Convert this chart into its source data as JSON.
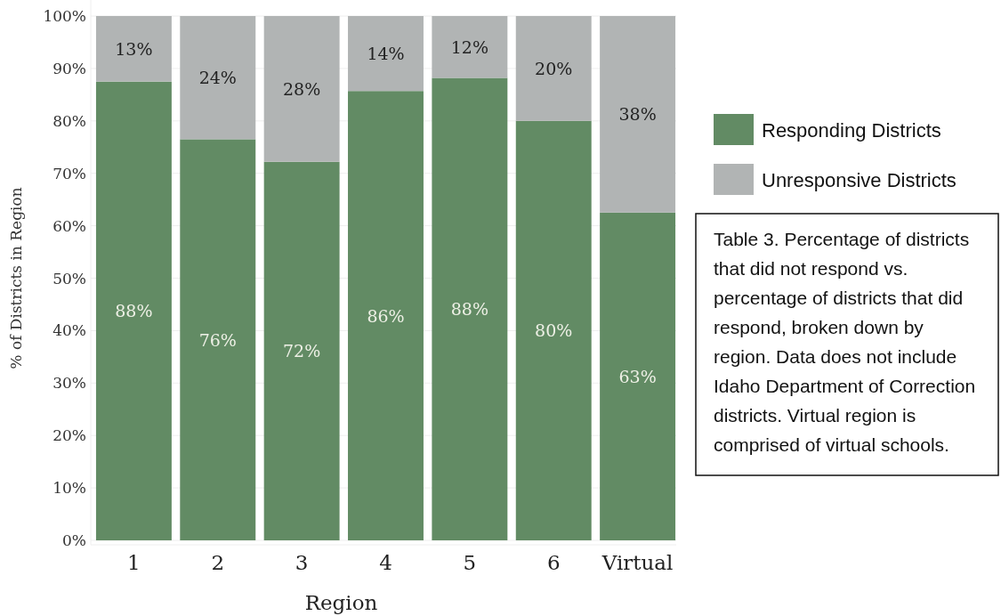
{
  "chart_data": {
    "type": "bar",
    "stacked": true,
    "xlabel": "Region",
    "ylabel": "% of Districts in Region",
    "categories": [
      "1",
      "2",
      "3",
      "4",
      "5",
      "6",
      "Virtual"
    ],
    "series": [
      {
        "name": "Responding Districts",
        "color": "#628b64",
        "values": [
          87.5,
          76.5,
          72.2,
          85.7,
          88.2,
          80,
          62.5
        ],
        "value_labels": [
          "88%",
          "76%",
          "72%",
          "86%",
          "88%",
          "80%",
          "63%"
        ]
      },
      {
        "name": "Unresponsive Districts",
        "color": "#b1b4b4",
        "values": [
          12.5,
          23.5,
          27.8,
          14.3,
          11.8,
          20,
          37.5
        ],
        "value_labels": [
          "13%",
          "24%",
          "28%",
          "14%",
          "12%",
          "20%",
          "38%"
        ]
      }
    ],
    "ylim": [
      0,
      100
    ],
    "yticks": [
      {
        "value": 0,
        "label": "0%"
      },
      {
        "value": 10,
        "label": "10%"
      },
      {
        "value": 20,
        "label": "20%"
      },
      {
        "value": 30,
        "label": "30%"
      },
      {
        "value": 40,
        "label": "40%"
      },
      {
        "value": 50,
        "label": "50%"
      },
      {
        "value": 60,
        "label": "60%"
      },
      {
        "value": 70,
        "label": "70%"
      },
      {
        "value": 80,
        "label": "80%"
      },
      {
        "value": 90,
        "label": "90%"
      },
      {
        "value": 100,
        "label": "100%"
      }
    ],
    "grid": "y",
    "legend": "right",
    "annotations": [
      "Table 3. Percentage of districts that did not respond vs. percentage of districts that did respond, broken down by region. Data does not include Idaho Department of Correction districts. Virtual region is comprised of virtual schools."
    ]
  }
}
